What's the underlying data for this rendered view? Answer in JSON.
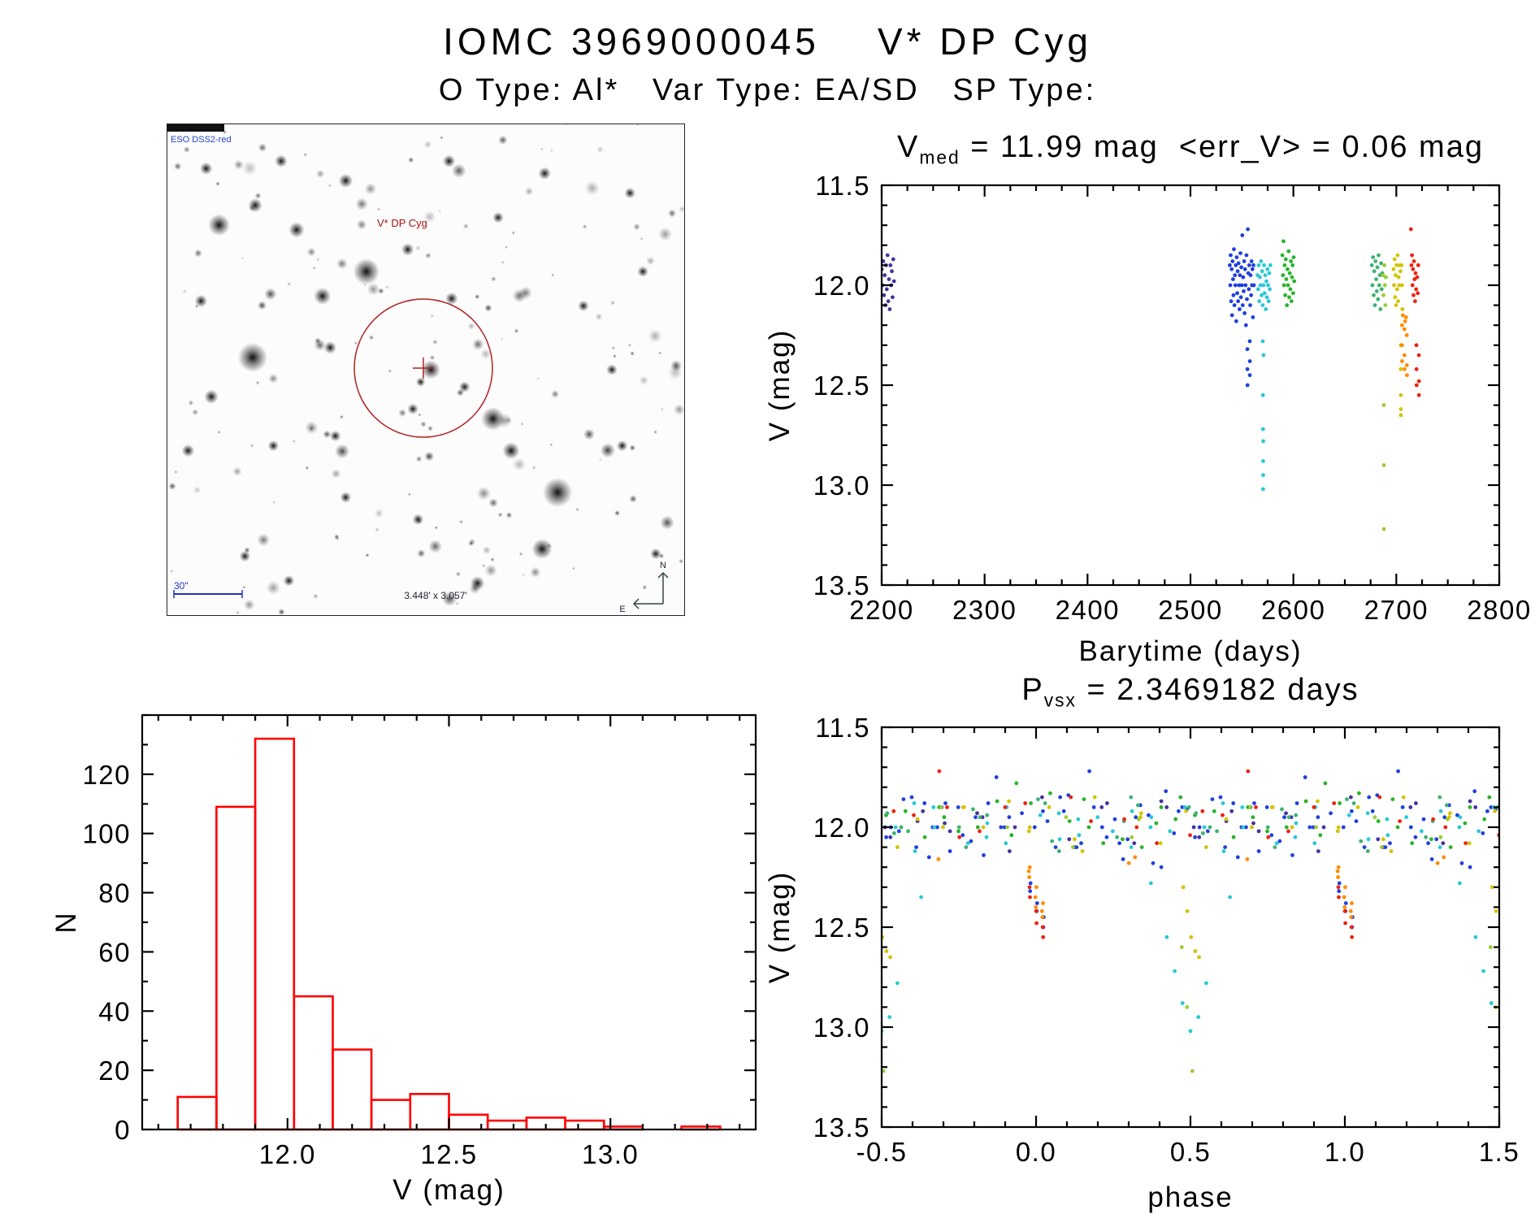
{
  "page": {
    "title": "IOMC 3969000045    V* DP Cyg",
    "subtitle": "O Type: Al*   Var Type: EA/SD   SP Type:"
  },
  "finder": {
    "survey_label": "ESO DSS2-red",
    "target_label": "V* DP Cyg",
    "scale_label": "30\"",
    "fov_label": "3.448' x 3.057'",
    "compass_n": "N",
    "compass_e": "E",
    "marker_color": "#b22222"
  },
  "chart_data": [
    {
      "id": "lightcurve",
      "type": "scatter",
      "title": {
        "base": "V",
        "sub": "med",
        "rest": " = 11.99 mag  <err_V> = 0.06 mag"
      },
      "xlabel": "Barytime (days)",
      "ylabel": "V (mag)",
      "xlim": [
        2200,
        2800
      ],
      "ylim": [
        11.5,
        13.5
      ],
      "y_inverted": true,
      "xticks": {
        "values": [
          2200,
          2300,
          2400,
          2500,
          2600,
          2700,
          2800
        ],
        "labels": [
          "2200",
          "2300",
          "2400",
          "2500",
          "2600",
          "2700",
          "2800"
        ]
      },
      "yticks": {
        "values": [
          11.5,
          12.0,
          12.5,
          13.0,
          13.5
        ],
        "labels": [
          "11.5",
          "12.0",
          "12.5",
          "13.0",
          "13.5"
        ]
      },
      "x_minor": 25,
      "y_minor": 0.1,
      "series": [
        {
          "name": "epoch1-purple",
          "color": "#46329f",
          "points": [
            [
              2200.1,
              11.92
            ],
            [
              2200.8,
              12.0
            ],
            [
              2201.5,
              11.88
            ],
            [
              2202.2,
              12.05
            ],
            [
              2202.9,
              11.95
            ],
            [
              2203.6,
              12.1
            ],
            [
              2204.3,
              11.9
            ],
            [
              2205.0,
              12.02
            ],
            [
              2205.7,
              11.85
            ],
            [
              2206.4,
              12.08
            ],
            [
              2207.1,
              11.97
            ],
            [
              2207.8,
              12.12
            ],
            [
              2208.5,
              11.9
            ],
            [
              2209.2,
              12.0
            ],
            [
              2209.9,
              11.93
            ],
            [
              2210.6,
              12.06
            ],
            [
              2211.3,
              11.87
            ],
            [
              2212.0,
              11.98
            ]
          ]
        },
        {
          "name": "epoch2-blue",
          "color": "#2040dd",
          "points": [
            [
              2538.2,
              11.9
            ],
            [
              2538.65,
              12.0
            ],
            [
              2539.1,
              11.85
            ],
            [
              2539.55,
              12.08
            ],
            [
              2540.0,
              11.92
            ],
            [
              2540.45,
              12.15
            ],
            [
              2540.9,
              11.88
            ],
            [
              2541.35,
              11.97
            ],
            [
              2541.8,
              12.05
            ],
            [
              2542.25,
              11.82
            ],
            [
              2542.7,
              12.1
            ],
            [
              2543.15,
              11.95
            ],
            [
              2543.6,
              12.0
            ],
            [
              2544.05,
              11.9
            ],
            [
              2544.5,
              12.18
            ],
            [
              2544.95,
              11.86
            ],
            [
              2545.4,
              12.04
            ],
            [
              2545.85,
              11.93
            ],
            [
              2546.3,
              12.08
            ],
            [
              2546.75,
              11.89
            ],
            [
              2547.2,
              12.0
            ],
            [
              2547.65,
              12.12
            ],
            [
              2548.1,
              11.95
            ],
            [
              2548.55,
              11.84
            ],
            [
              2549.0,
              12.06
            ],
            [
              2549.45,
              11.91
            ],
            [
              2549.9,
              12.0
            ],
            [
              2550.35,
              11.75
            ],
            [
              2550.8,
              12.1
            ],
            [
              2551.25,
              11.96
            ],
            [
              2551.7,
              12.03
            ],
            [
              2552.15,
              11.88
            ],
            [
              2552.6,
              12.14
            ],
            [
              2553.05,
              11.92
            ],
            [
              2553.5,
              12.0
            ],
            [
              2553.95,
              12.2
            ],
            [
              2554.4,
              11.85
            ],
            [
              2554.85,
              12.07
            ],
            [
              2555.75,
              11.72
            ],
            [
              2556.2,
              11.94
            ],
            [
              2556.65,
              12.02
            ],
            [
              2557.1,
              11.9
            ],
            [
              2558.0,
              12.1
            ],
            [
              2558.45,
              11.95
            ],
            [
              2558.9,
              12.05
            ],
            [
              2559.35,
              11.88
            ],
            [
              2559.8,
              12.0
            ],
            [
              2560.25,
              11.92
            ],
            [
              2560.7,
              12.16
            ],
            [
              2561.15,
              11.9
            ],
            [
              2561.6,
              12.0
            ],
            [
              2555.3,
              12.32
            ],
            [
              2555.35,
              12.42
            ],
            [
              2555.4,
              12.5
            ],
            [
              2557.65,
              12.28
            ],
            [
              2557.7,
              12.38
            ],
            [
              2557.75,
              12.45
            ]
          ]
        },
        {
          "name": "epoch3-cyan",
          "color": "#28c8d8",
          "points": [
            [
              2565.2,
              11.95
            ],
            [
              2565.75,
              12.02
            ],
            [
              2566.3,
              11.9
            ],
            [
              2566.85,
              12.08
            ],
            [
              2567.4,
              11.96
            ],
            [
              2567.95,
              12.0
            ],
            [
              2568.5,
              11.88
            ],
            [
              2569.05,
              12.05
            ],
            [
              2569.6,
              11.93
            ],
            [
              2570.15,
              12.1
            ],
            [
              2571.0,
              12.0
            ],
            [
              2571.55,
              11.9
            ],
            [
              2572.1,
              12.04
            ],
            [
              2572.65,
              11.95
            ],
            [
              2573.2,
              12.12
            ],
            [
              2573.75,
              11.98
            ],
            [
              2574.3,
              12.06
            ],
            [
              2574.85,
              11.92
            ],
            [
              2575.4,
              12.0
            ],
            [
              2575.95,
              12.08
            ],
            [
              2576.5,
              11.94
            ],
            [
              2577.05,
              12.02
            ],
            [
              2577.6,
              11.9
            ],
            [
              2570.3,
              12.28
            ],
            [
              2570.42,
              12.55
            ],
            [
              2570.48,
              12.72
            ],
            [
              2570.54,
              12.88
            ],
            [
              2570.6,
              13.02
            ],
            [
              2570.66,
              12.95
            ],
            [
              2570.72,
              12.78
            ],
            [
              2570.9,
              12.35
            ]
          ]
        },
        {
          "name": "epoch4-green",
          "color": "#28b428",
          "points": [
            [
              2589.3,
              11.85
            ],
            [
              2589.85,
              11.95
            ],
            [
              2590.4,
              11.78
            ],
            [
              2590.95,
              12.0
            ],
            [
              2591.5,
              11.9
            ],
            [
              2592.05,
              12.05
            ],
            [
              2592.6,
              11.87
            ],
            [
              2593.15,
              11.97
            ],
            [
              2593.7,
              12.1
            ],
            [
              2594.25,
              11.92
            ],
            [
              2594.8,
              12.0
            ],
            [
              2595.35,
              11.83
            ],
            [
              2595.9,
              12.06
            ],
            [
              2596.45,
              11.94
            ],
            [
              2597.0,
              12.02
            ],
            [
              2597.55,
              11.88
            ],
            [
              2598.1,
              12.08
            ],
            [
              2598.65,
              11.96
            ],
            [
              2599.2,
              11.9
            ],
            [
              2599.75,
              12.04
            ],
            [
              2600.3,
              11.86
            ],
            [
              2600.85,
              11.98
            ]
          ]
        },
        {
          "name": "epoch5-seagreen",
          "color": "#3cb371",
          "points": [
            [
              2676.2,
              11.9
            ],
            [
              2676.8,
              12.0
            ],
            [
              2677.4,
              11.86
            ],
            [
              2678.0,
              12.05
            ],
            [
              2678.6,
              11.93
            ],
            [
              2679.2,
              12.1
            ],
            [
              2679.8,
              11.88
            ],
            [
              2680.4,
              11.97
            ],
            [
              2681.0,
              12.03
            ],
            [
              2681.6,
              11.91
            ],
            [
              2682.2,
              12.07
            ],
            [
              2682.8,
              11.85
            ],
            [
              2683.4,
              12.0
            ],
            [
              2684.0,
              11.95
            ],
            [
              2684.6,
              12.12
            ],
            [
              2685.2,
              11.89
            ],
            [
              2685.8,
              12.02
            ],
            [
              2686.4,
              11.94
            ]
          ]
        },
        {
          "name": "epoch6-yellowgreen",
          "color": "#9acd32",
          "points": [
            [
              2687.0,
              11.95
            ],
            [
              2687.5,
              12.05
            ],
            [
              2688.4,
              11.9
            ],
            [
              2688.9,
              12.0
            ],
            [
              2689.4,
              12.1
            ],
            [
              2689.9,
              11.96
            ],
            [
              2687.88,
              12.6
            ],
            [
              2687.92,
              12.9
            ],
            [
              2687.96,
              13.22
            ]
          ]
        },
        {
          "name": "epoch7-yellow",
          "color": "#d4c400",
          "points": [
            [
              2697.3,
              11.92
            ],
            [
              2697.8,
              12.0
            ],
            [
              2698.3,
              11.87
            ],
            [
              2698.8,
              12.06
            ],
            [
              2699.3,
              11.95
            ],
            [
              2699.8,
              12.1
            ],
            [
              2700.3,
              11.9
            ],
            [
              2700.8,
              12.02
            ],
            [
              2701.3,
              11.85
            ],
            [
              2701.8,
              12.08
            ],
            [
              2702.3,
              11.96
            ],
            [
              2702.8,
              12.0
            ],
            [
              2703.3,
              11.9
            ],
            [
              2704.0,
              11.93
            ],
            [
              2705.0,
              11.9
            ],
            [
              2705.5,
              12.0
            ],
            [
              2705.9,
              12.12
            ],
            [
              2704.32,
              12.3
            ],
            [
              2704.35,
              12.42
            ],
            [
              2704.38,
              12.55
            ],
            [
              2704.41,
              12.62
            ],
            [
              2704.44,
              12.65
            ]
          ]
        },
        {
          "name": "epoch8-orange",
          "color": "#ff8c00",
          "points": [
            [
              2705.5,
              12.2
            ],
            [
              2705.55,
              12.3
            ],
            [
              2705.6,
              12.38
            ],
            [
              2707.84,
              12.22
            ],
            [
              2707.89,
              12.35
            ],
            [
              2707.94,
              12.42
            ],
            [
              2710.19,
              12.25
            ],
            [
              2710.24,
              12.4
            ],
            [
              2710.29,
              12.45
            ],
            [
              2706.3,
              12.15
            ],
            [
              2708.6,
              12.18
            ],
            [
              2709.5,
              12.16
            ]
          ]
        },
        {
          "name": "epoch9-red",
          "color": "#ee2211",
          "points": [
            [
              2714.2,
              11.72
            ],
            [
              2714.7,
              11.9
            ],
            [
              2715.2,
              11.85
            ],
            [
              2715.7,
              12.0
            ],
            [
              2716.2,
              11.92
            ],
            [
              2716.7,
              12.05
            ],
            [
              2717.2,
              11.88
            ],
            [
              2717.7,
              11.97
            ],
            [
              2718.2,
              12.08
            ],
            [
              2718.7,
              11.94
            ],
            [
              2719.2,
              12.02
            ],
            [
              2720.3,
              11.96
            ],
            [
              2720.8,
              12.04
            ],
            [
              2721.3,
              11.9
            ],
            [
              2719.58,
              12.3
            ],
            [
              2719.63,
              12.42
            ],
            [
              2719.68,
              12.5
            ],
            [
              2721.93,
              12.35
            ],
            [
              2721.98,
              12.48
            ],
            [
              2722.03,
              12.55
            ]
          ]
        }
      ]
    },
    {
      "id": "histogram",
      "type": "bar",
      "xlabel": "V (mag)",
      "ylabel": "N",
      "color": "#ff0000",
      "bin_start": 11.66,
      "bin_width": 0.12,
      "counts": [
        11,
        109,
        132,
        45,
        27,
        10,
        12,
        5,
        3,
        4,
        3,
        1,
        0,
        1
      ],
      "xlim": [
        11.55,
        13.45
      ],
      "ylim": [
        0,
        140
      ],
      "xticks": {
        "values": [
          12.0,
          12.5,
          13.0
        ],
        "labels": [
          "12.0",
          "12.5",
          "13.0"
        ]
      },
      "yticks": {
        "values": [
          0,
          20,
          40,
          60,
          80,
          100,
          120
        ],
        "labels": [
          "0",
          "20",
          "40",
          "60",
          "80",
          "100",
          "120"
        ]
      },
      "x_minor": 0.1,
      "y_minor": 10
    },
    {
      "id": "phased",
      "type": "scatter",
      "title": {
        "base": "P",
        "sub": "vsx",
        "rest": " = 2.3469182 days"
      },
      "xlabel": "phase",
      "ylabel": "V (mag)",
      "xlim": [
        -0.5,
        1.5
      ],
      "ylim": [
        11.5,
        13.5
      ],
      "y_inverted": true,
      "xticks": {
        "values": [
          -0.5,
          0.0,
          0.5,
          1.0,
          1.5
        ],
        "labels": [
          "-0.5",
          "0.0",
          "0.5",
          "1.0",
          "1.5"
        ]
      },
      "yticks": {
        "values": [
          11.5,
          12.0,
          12.5,
          13.0,
          13.5
        ],
        "labels": [
          "11.5",
          "12.0",
          "12.5",
          "13.0",
          "13.5"
        ]
      },
      "x_minor": 0.1,
      "y_minor": 0.1,
      "period_days": 2.3469182,
      "fold_epoch_day": 2569.4265,
      "derived_from": "lightcurve",
      "duplicate_cycle": true
    }
  ]
}
